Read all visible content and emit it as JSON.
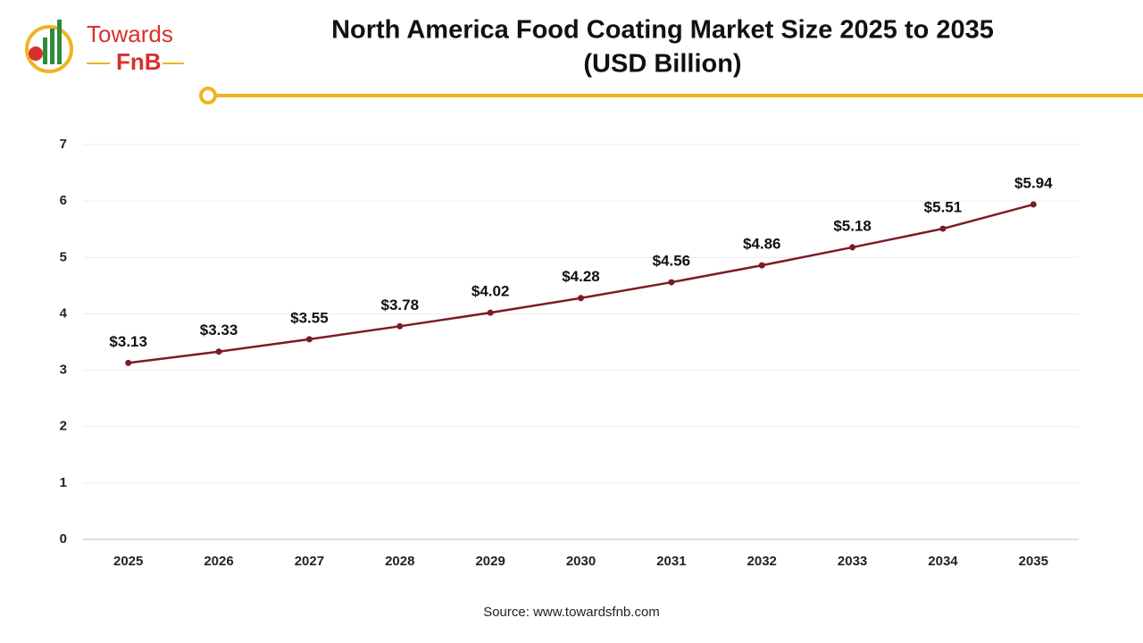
{
  "logo": {
    "name": "Towards",
    "brand": "FnB"
  },
  "chart_data": {
    "type": "line",
    "title": "North America Food Coating Market Size 2025 to 2035",
    "subtitle": "(USD Billion)",
    "source": "Source: www.towardsfnb.com",
    "categories": [
      "2025",
      "2026",
      "2027",
      "2028",
      "2029",
      "2030",
      "2031",
      "2032",
      "2033",
      "2034",
      "2035"
    ],
    "values": [
      3.13,
      3.33,
      3.55,
      3.78,
      4.02,
      4.28,
      4.56,
      4.86,
      5.18,
      5.51,
      5.94
    ],
    "value_labels": [
      "$3.13",
      "$3.33",
      "$3.55",
      "$3.78",
      "$4.02",
      "$4.28",
      "$4.56",
      "$4.86",
      "$5.18",
      "$5.51",
      "$5.94"
    ],
    "color": "#7b1c24",
    "ylim": [
      0,
      7
    ],
    "yticks": [
      0,
      1,
      2,
      3,
      4,
      5,
      6,
      7
    ],
    "grid": true
  }
}
